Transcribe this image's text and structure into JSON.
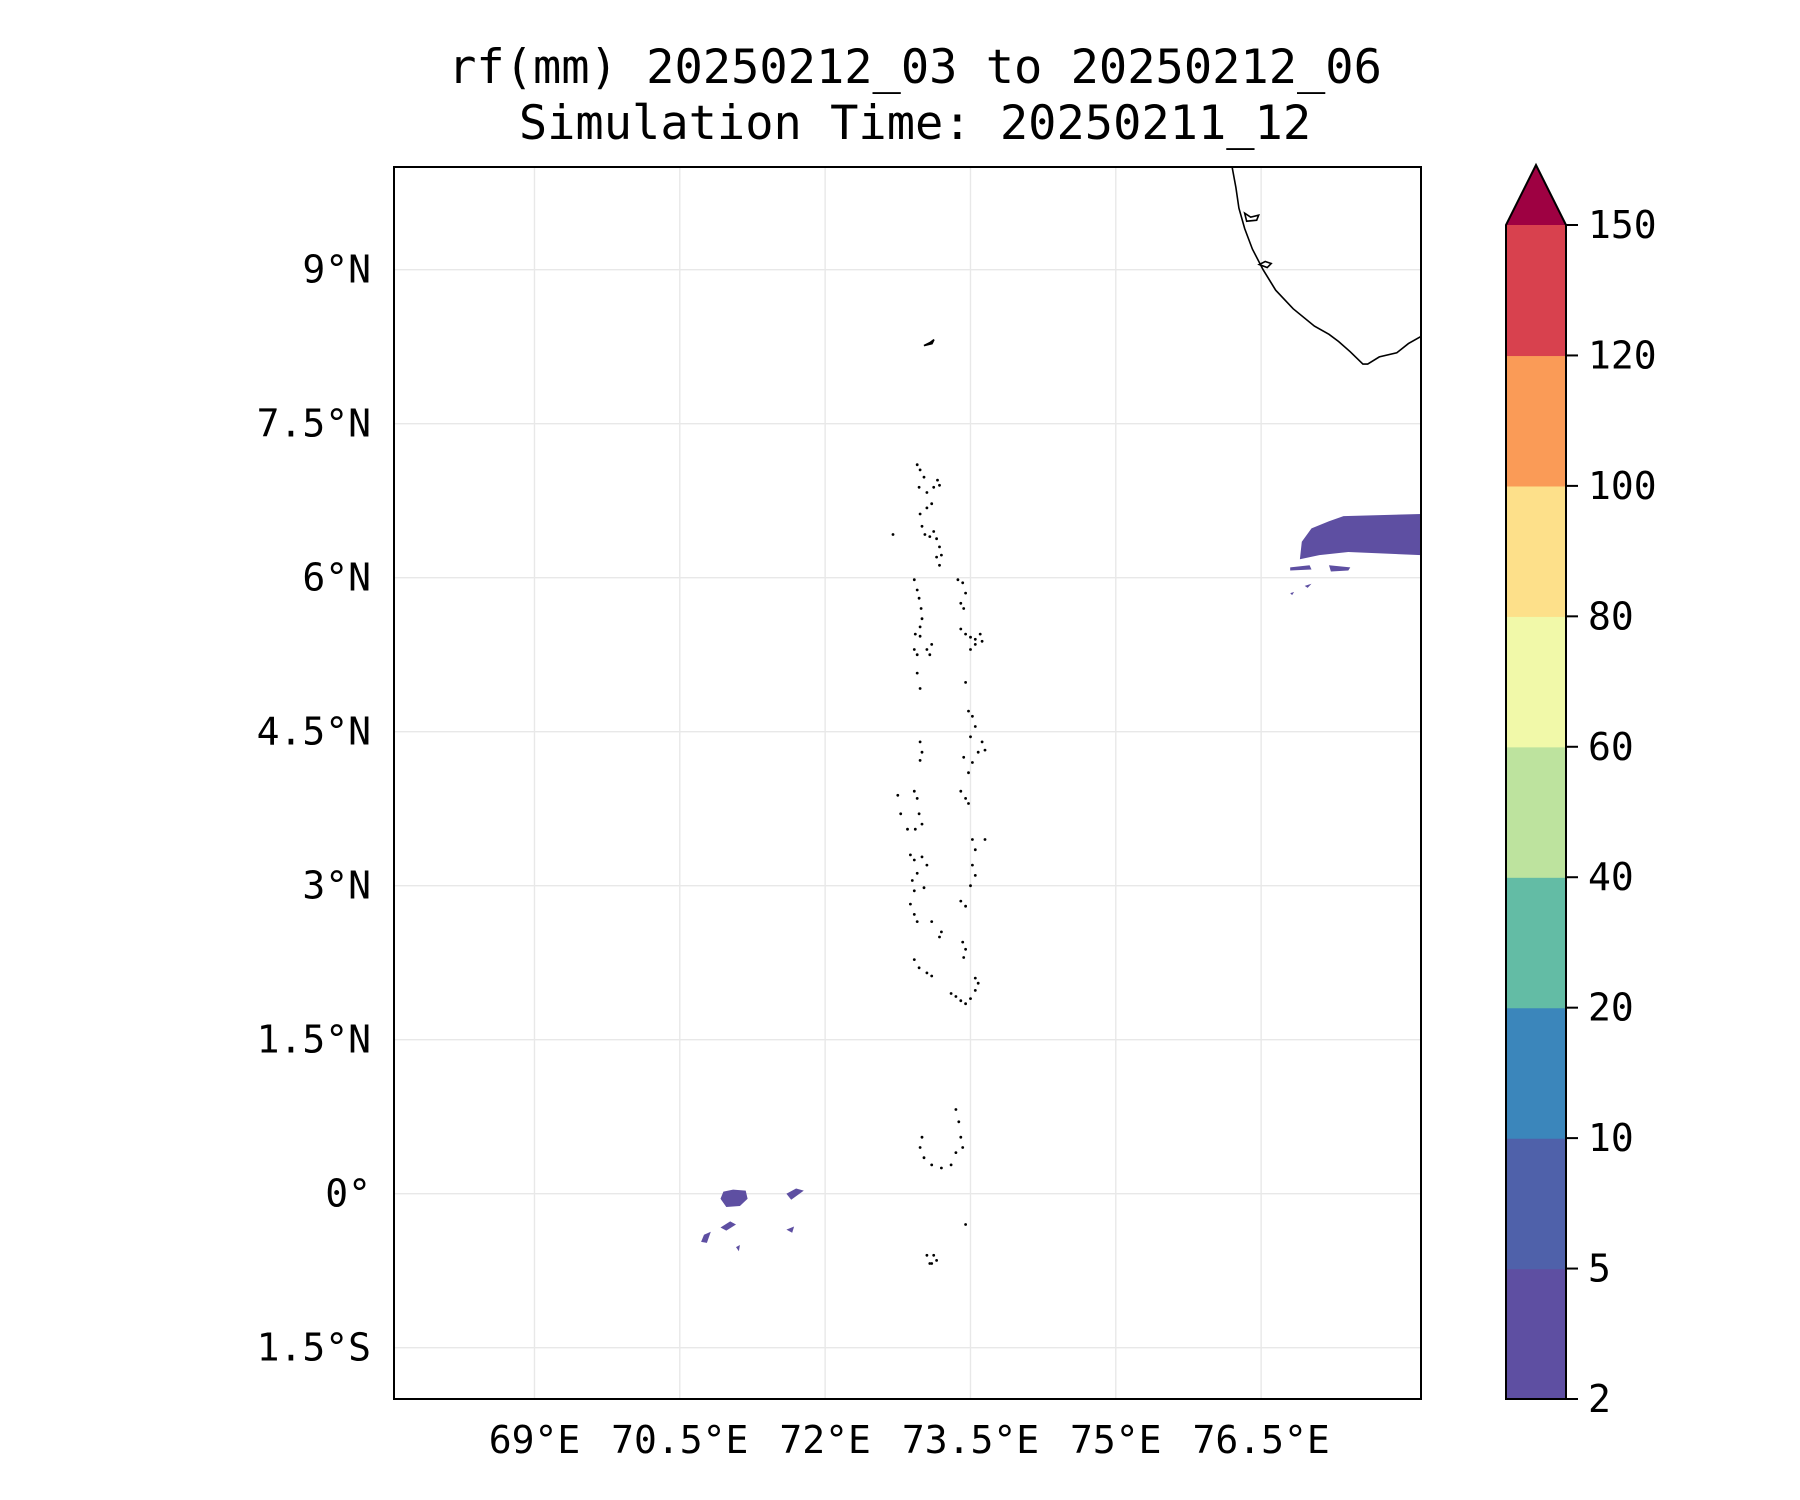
{
  "title_line1": "rf(mm) 20250212_03 to 20250212_06",
  "title_line2": "Simulation Time: 20250211_12",
  "map": {
    "lon_range": [
      67.55,
      78.15
    ],
    "lat_range": [
      -2.0,
      10.0
    ],
    "x_ticks": [
      {
        "value": 69.0,
        "label": "69°E"
      },
      {
        "value": 70.5,
        "label": "70.5°E"
      },
      {
        "value": 72.0,
        "label": "72°E"
      },
      {
        "value": 73.5,
        "label": "73.5°E"
      },
      {
        "value": 75.0,
        "label": "75°E"
      },
      {
        "value": 76.5,
        "label": "76.5°E"
      }
    ],
    "y_ticks": [
      {
        "value": 9.0,
        "label": "9°N"
      },
      {
        "value": 7.5,
        "label": "7.5°N"
      },
      {
        "value": 6.0,
        "label": "6°N"
      },
      {
        "value": 4.5,
        "label": "4.5°N"
      },
      {
        "value": 3.0,
        "label": "3°N"
      },
      {
        "value": 1.5,
        "label": "1.5°N"
      },
      {
        "value": 0.0,
        "label": "0°"
      },
      {
        "value": -1.5,
        "label": "1.5°S"
      }
    ],
    "grid": true
  },
  "colorbar": {
    "levels": [
      "2",
      "5",
      "10",
      "20",
      "40",
      "60",
      "80",
      "100",
      "120",
      "150"
    ],
    "colors": [
      "#5e4fa2",
      "#4f61aa",
      "#3b86bb",
      "#63bca5",
      "#bde39e",
      "#f1f9a9",
      "#fde08a",
      "#fa9b57",
      "#d8414e",
      "#9e0142"
    ],
    "extend": "max"
  },
  "rain_color": "#5e4fa2",
  "coast_color": "#000000"
}
